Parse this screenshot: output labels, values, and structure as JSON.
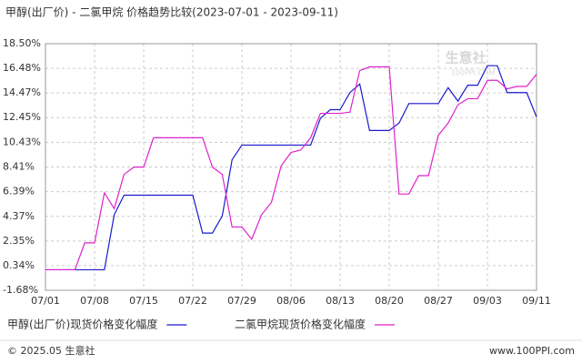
{
  "chart_data": {
    "type": "line",
    "title": "甲醇(出厂价) - 二氯甲烷 价格趋势比较(2023-07-01 - 2023-09-11)",
    "categories": [
      "07/01",
      null,
      null,
      null,
      null,
      "07/08",
      null,
      null,
      null,
      null,
      "07/15",
      null,
      null,
      null,
      null,
      "07/22",
      null,
      null,
      null,
      null,
      "07/29",
      null,
      null,
      null,
      null,
      "08/06",
      null,
      null,
      null,
      null,
      "08/13",
      null,
      null,
      null,
      null,
      "08/20",
      null,
      null,
      null,
      null,
      "08/27",
      null,
      null,
      null,
      null,
      "09/03",
      null,
      null,
      null,
      null,
      "09/11"
    ],
    "series": [
      {
        "name": "甲醇(出厂价)现货价格变化幅度",
        "color": "#1a1acc",
        "values": [
          0,
          0,
          0,
          0,
          0,
          0,
          0,
          4.5,
          6.1,
          6.1,
          6.1,
          6.1,
          6.1,
          6.1,
          6.1,
          6.1,
          3.0,
          3.0,
          4.4,
          9.0,
          10.2,
          10.2,
          10.2,
          10.2,
          10.2,
          10.2,
          10.2,
          10.2,
          12.4,
          13.1,
          13.1,
          14.5,
          15.2,
          11.4,
          11.4,
          11.4,
          12.0,
          13.6,
          13.6,
          13.6,
          13.6,
          14.9,
          13.8,
          15.1,
          15.1,
          16.7,
          16.7,
          14.5,
          14.5,
          14.5,
          12.5
        ]
      },
      {
        "name": "二氯甲烷现货价格变化幅度",
        "color": "#dd22cc",
        "values": [
          0,
          0,
          0,
          0,
          2.2,
          2.2,
          6.3,
          5.0,
          7.8,
          8.4,
          8.4,
          10.8,
          10.8,
          10.8,
          10.8,
          10.8,
          10.8,
          8.4,
          7.8,
          3.5,
          3.5,
          2.5,
          4.5,
          5.5,
          8.5,
          9.6,
          9.8,
          10.8,
          12.8,
          12.8,
          12.8,
          12.9,
          16.3,
          16.6,
          16.6,
          16.6,
          6.2,
          6.2,
          7.7,
          7.7,
          11.0,
          12.0,
          13.5,
          14.0,
          14.0,
          15.5,
          15.5,
          14.8,
          15.0,
          15.0,
          16.0
        ]
      }
    ],
    "ylim": [
      -1.68,
      18.5
    ],
    "yticks": [
      {
        "value": 18.5,
        "label": "18.50%"
      },
      {
        "value": 16.48,
        "label": "16.48%"
      },
      {
        "value": 14.47,
        "label": "14.47%"
      },
      {
        "value": 12.45,
        "label": "12.45%"
      },
      {
        "value": 10.43,
        "label": "10.43%"
      },
      {
        "value": 8.41,
        "label": "8.41%"
      },
      {
        "value": 6.39,
        "label": "6.39%"
      },
      {
        "value": 4.37,
        "label": "4.37%"
      },
      {
        "value": 2.35,
        "label": "2.35%"
      },
      {
        "value": 0.34,
        "label": "0.34%"
      },
      {
        "value": -1.68,
        "label": "-1.68%"
      }
    ],
    "grid": true,
    "watermark": [
      "生意社",
      "100PPI.COM"
    ]
  },
  "footer": {
    "left": "© 2025.05 生意社",
    "right": "www.100PPI.com"
  }
}
